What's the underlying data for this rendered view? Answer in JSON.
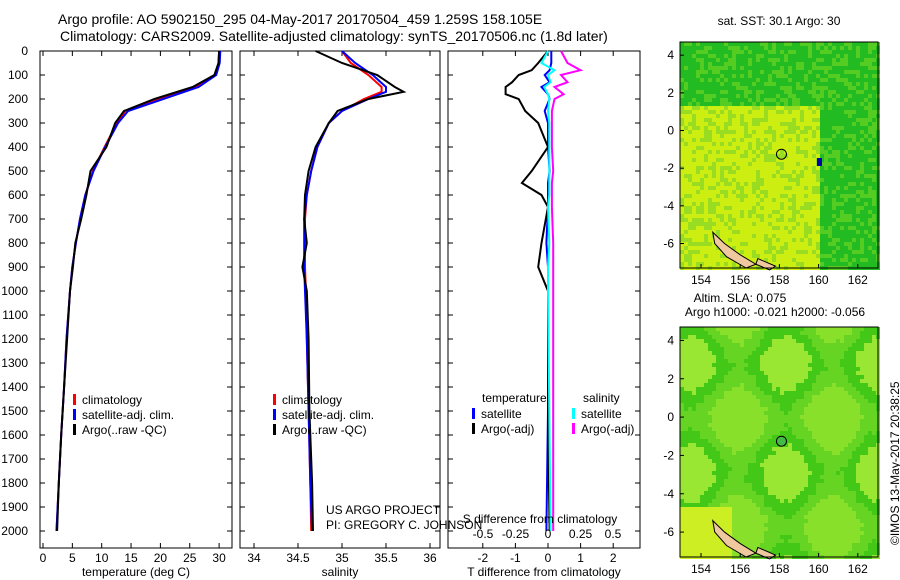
{
  "title_line1": "Argo profile: AO 5902150_295 04-May-2017 20170504_459 1.259S 158.105E",
  "title_line2": "Climatology: CARS2009. Satellite-adjusted climatology: synTS_20170506.nc (1.8d later)",
  "credit": "©IMOS 13-May-2017 20:38:25",
  "project_line1": "US ARGO PROJECT",
  "project_line2": "PI: GREGORY C. JOHNSON",
  "colors": {
    "climatology": "#ff0000",
    "satellite": "#0000ff",
    "argo": "#000000",
    "sal_satellite": "#00ffff",
    "sal_argo": "#ff00ff"
  },
  "chart_data": [
    {
      "type": "line",
      "name": "temperature-profile",
      "xlabel": "temperature (deg C)",
      "ylabel": "depth",
      "xlim": [
        -1.5,
        32
      ],
      "ylim": [
        2000,
        0
      ],
      "xticks": [
        0,
        5,
        10,
        15,
        20,
        25,
        30
      ],
      "yticks": [
        0,
        100,
        200,
        300,
        400,
        500,
        600,
        700,
        800,
        900,
        1000,
        1100,
        1200,
        1300,
        1400,
        1500,
        1600,
        1700,
        1800,
        1900,
        2000
      ],
      "legend": [
        "climatology",
        "satellite-adj. clim.",
        "Argo(..raw -QC)"
      ],
      "depth": [
        0,
        50,
        100,
        150,
        200,
        250,
        300,
        400,
        500,
        600,
        700,
        800,
        900,
        1000,
        1200,
        1400,
        1600,
        1800,
        2000
      ],
      "series": [
        {
          "name": "climatology",
          "values": [
            30,
            29.9,
            29.4,
            26,
            20,
            14,
            12.6,
            10.5,
            8.5,
            7.2,
            6.3,
            5.6,
            5,
            4.6,
            4,
            3.6,
            3.1,
            2.7,
            2.3
          ]
        },
        {
          "name": "satellite-adj. clim.",
          "values": [
            30.2,
            30.1,
            29.5,
            26.5,
            20.5,
            14.5,
            12.8,
            10.6,
            8.6,
            7.2,
            6.3,
            5.6,
            5,
            4.6,
            4,
            3.6,
            3.1,
            2.7,
            2.3
          ]
        },
        {
          "name": "Argo(..raw -QC)",
          "values": [
            30,
            29.9,
            29.2,
            25.5,
            19,
            13.8,
            12.3,
            10.8,
            8.1,
            7.4,
            6.5,
            5.5,
            5.1,
            4.6,
            4.1,
            3.6,
            3.1,
            2.7,
            2.4
          ]
        }
      ]
    },
    {
      "type": "line",
      "name": "salinity-profile",
      "xlabel": "salinity",
      "xlim": [
        33.8,
        36.1
      ],
      "ylim": [
        2000,
        0
      ],
      "xticks": [
        34,
        34.5,
        35,
        35.5,
        36
      ],
      "legend": [
        "climatology",
        "satellite-adj. clim.",
        "Argo(..raw -QC)"
      ],
      "depth": [
        0,
        50,
        100,
        150,
        170,
        200,
        250,
        300,
        400,
        500,
        600,
        700,
        800,
        900,
        1000,
        1200,
        1500,
        1800,
        2000
      ],
      "series": [
        {
          "name": "climatology",
          "values": [
            35.0,
            35.1,
            35.3,
            35.45,
            35.45,
            35.25,
            35.0,
            34.85,
            34.72,
            34.65,
            34.6,
            34.58,
            34.58,
            34.58,
            34.59,
            34.6,
            34.62,
            34.64,
            34.65
          ]
        },
        {
          "name": "satellite-adj. clim.",
          "values": [
            35.0,
            35.15,
            35.35,
            35.5,
            35.5,
            35.3,
            35.0,
            34.85,
            34.72,
            34.65,
            34.6,
            34.57,
            34.57,
            34.57,
            34.58,
            34.6,
            34.62,
            34.64,
            34.66
          ]
        },
        {
          "name": "Argo(..raw -QC)",
          "values": [
            34.7,
            35.0,
            35.4,
            35.6,
            35.7,
            35.3,
            34.95,
            34.85,
            34.7,
            34.62,
            34.58,
            34.57,
            34.6,
            34.55,
            34.6,
            34.62,
            34.63,
            34.66,
            34.67
          ]
        }
      ]
    },
    {
      "type": "line",
      "name": "difference-profile",
      "xlabel": "T difference from climatology",
      "x2label": "S difference from climatology",
      "xlim": [
        -3,
        3
      ],
      "x2lim": [
        -0.75,
        0.75
      ],
      "ylim": [
        2000,
        0
      ],
      "xticks": [
        -2,
        -1,
        0,
        1,
        2
      ],
      "x2ticks": [
        -0.5,
        -0.25,
        0,
        0.25,
        0.5
      ],
      "legend_title_t": "temperature",
      "legend_title_s": "salinity",
      "legend": [
        "satellite",
        "Argo(-adj)",
        "satellite",
        "Argo(-adj)"
      ],
      "depth": [
        0,
        50,
        80,
        100,
        130,
        150,
        180,
        200,
        250,
        300,
        400,
        500,
        550,
        600,
        650,
        800,
        900,
        1000,
        1500,
        2000
      ],
      "series": [
        {
          "name": "T satellite",
          "axis": "T",
          "values": [
            0.1,
            0.1,
            0.05,
            -0.1,
            0.05,
            -0.2,
            0,
            0.05,
            -0.1,
            0,
            0,
            0.05,
            0,
            0,
            0,
            -0.05,
            0,
            0,
            0,
            -0.05
          ]
        },
        {
          "name": "T Argo(-adj)",
          "axis": "T",
          "values": [
            0,
            -0.3,
            -0.5,
            -0.9,
            -1.1,
            -1.3,
            -1.3,
            -0.9,
            -0.7,
            -0.3,
            0,
            -0.5,
            -0.8,
            -0.2,
            0,
            -0.2,
            -0.3,
            0,
            0,
            0.05
          ]
        },
        {
          "name": "S satellite",
          "axis": "S",
          "values": [
            0,
            -0.05,
            0.05,
            0,
            0.02,
            -0.03,
            0,
            0.01,
            0,
            0.01,
            0.01,
            0.01,
            0.01,
            0.01,
            0,
            0.01,
            0,
            0,
            0.01,
            0.02
          ]
        },
        {
          "name": "S Argo(-adj)",
          "axis": "S",
          "values": [
            0.1,
            0.15,
            0.25,
            0.1,
            0.15,
            0.05,
            0.12,
            0.05,
            0.03,
            0.03,
            0.03,
            0.04,
            0.03,
            0.03,
            0.03,
            0.04,
            0.04,
            0.04,
            0.04,
            0.04
          ]
        }
      ]
    },
    {
      "type": "heatmap",
      "name": "sst-map",
      "title": "sat. SST: 30.1 Argo: 30",
      "xlim": [
        153,
        163
      ],
      "ylim": [
        -7.3,
        4.7
      ],
      "xticks": [
        154,
        156,
        158,
        160,
        162
      ],
      "yticks": [
        -6,
        -4,
        -2,
        0,
        2,
        4
      ],
      "marker": [
        158.105,
        -1.259
      ]
    },
    {
      "type": "heatmap",
      "name": "sla-map",
      "title_line1": "Altim. SLA: 0.075",
      "title_line2": "Argo h1000: -0.021 h2000: -0.056",
      "xlim": [
        153,
        163
      ],
      "ylim": [
        -7.3,
        4.7
      ],
      "xticks": [
        154,
        156,
        158,
        160,
        162
      ],
      "yticks": [
        -6,
        -4,
        -2,
        0,
        2,
        4
      ],
      "marker": [
        158.105,
        -1.259
      ]
    }
  ]
}
